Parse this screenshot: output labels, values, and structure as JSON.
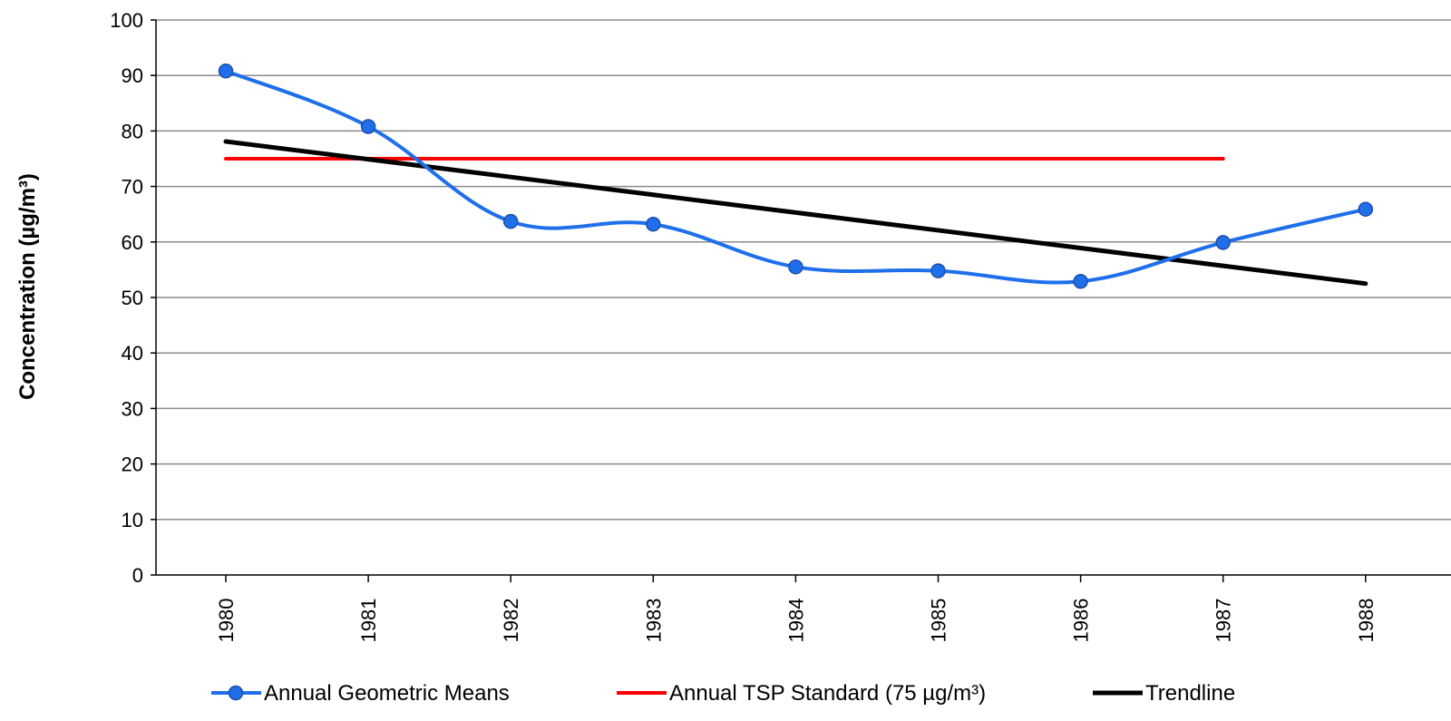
{
  "chart_data": {
    "type": "line",
    "ylabel": "Concentration (µg/m³)",
    "xlabel": "",
    "title": "",
    "ylim": [
      0,
      100
    ],
    "yticks": [
      0,
      10,
      20,
      30,
      40,
      50,
      60,
      70,
      80,
      90,
      100
    ],
    "categories": [
      "1980",
      "1981",
      "1982",
      "1983",
      "1984",
      "1985",
      "1986",
      "1987",
      "1988"
    ],
    "grid": true,
    "legend_position": "bottom",
    "series": [
      {
        "name": "Annual Geometric Means",
        "color": "#1f6feb",
        "values": [
          90.8,
          80.8,
          63.7,
          63.2,
          55.5,
          54.8,
          52.9,
          59.9,
          65.9
        ],
        "smooth": true,
        "markers": true
      },
      {
        "name": "Annual TSP Standard (75 µg/m³)",
        "color": "#ff0000",
        "values": [
          75,
          75,
          75,
          75,
          75,
          75,
          75,
          75,
          null
        ]
      },
      {
        "name": "Trendline",
        "color": "#000000",
        "values": [
          78.1,
          74.9,
          71.7,
          68.5,
          65.3,
          62.1,
          58.9,
          55.7,
          52.5
        ]
      }
    ]
  }
}
